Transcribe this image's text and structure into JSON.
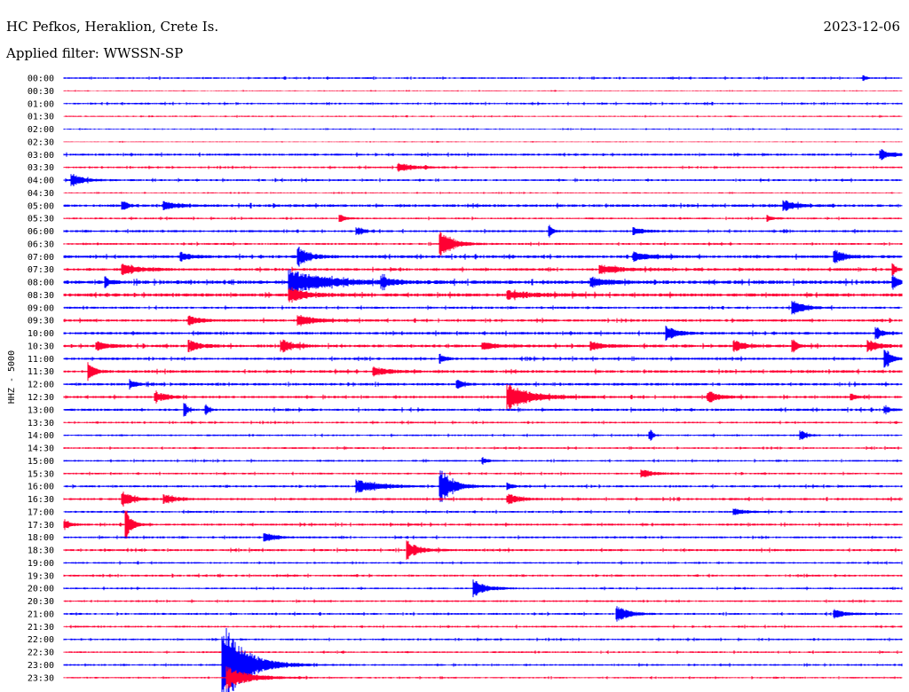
{
  "header": {
    "station": "HC Pefkos, Heraklion, Crete Is.",
    "date": "2023-12-06",
    "filter": "Applied filter: WWSSN-SP",
    "channel_label": "HHZ - 5000"
  },
  "colors": {
    "even_trace": "#0000ff",
    "odd_trace": "#ff0033",
    "background": "#ffffff",
    "text": "#000000"
  },
  "chart_data": {
    "type": "line",
    "title": "HC Pefkos, Heraklion, Crete Is.",
    "ylabel": "HHZ - 5000",
    "row_labels": [
      "00:00",
      "00:30",
      "01:00",
      "01:30",
      "02:00",
      "02:30",
      "03:00",
      "03:30",
      "04:00",
      "04:30",
      "05:00",
      "05:30",
      "06:00",
      "06:30",
      "07:00",
      "07:30",
      "08:00",
      "08:30",
      "09:00",
      "09:30",
      "10:00",
      "10:30",
      "11:00",
      "11:30",
      "12:00",
      "12:30",
      "13:00",
      "13:30",
      "14:00",
      "14:30",
      "15:00",
      "15:30",
      "16:00",
      "16:30",
      "17:00",
      "17:30",
      "18:00",
      "18:30",
      "19:00",
      "19:30",
      "20:00",
      "20:30",
      "21:00",
      "21:30",
      "22:00",
      "22:30",
      "23:00",
      "23:30"
    ],
    "row_minutes": 30,
    "noise_level": [
      0.8,
      0.4,
      0.8,
      0.6,
      0.5,
      0.4,
      1.0,
      0.8,
      0.9,
      0.5,
      1.2,
      0.8,
      1.0,
      0.9,
      1.3,
      1.2,
      1.6,
      1.5,
      1.0,
      1.1,
      1.2,
      1.3,
      1.1,
      1.2,
      1.2,
      1.1,
      1.1,
      0.8,
      0.8,
      0.8,
      0.8,
      0.8,
      1.0,
      1.0,
      0.9,
      1.0,
      0.9,
      1.0,
      0.8,
      0.9,
      0.8,
      0.8,
      0.9,
      0.8,
      0.8,
      0.8,
      0.8,
      0.7
    ],
    "events": [
      {
        "row": 0,
        "t": 0.955,
        "amp": 2,
        "dur": 0.005
      },
      {
        "row": 6,
        "t": 0.975,
        "amp": 5,
        "dur": 0.02
      },
      {
        "row": 7,
        "t": 0.4,
        "amp": 4,
        "dur": 0.03
      },
      {
        "row": 8,
        "t": 0.01,
        "amp": 6,
        "dur": 0.02
      },
      {
        "row": 10,
        "t": 0.07,
        "amp": 5,
        "dur": 0.01
      },
      {
        "row": 10,
        "t": 0.12,
        "amp": 4,
        "dur": 0.02
      },
      {
        "row": 10,
        "t": 0.86,
        "amp": 5,
        "dur": 0.02
      },
      {
        "row": 11,
        "t": 0.33,
        "amp": 3,
        "dur": 0.01
      },
      {
        "row": 11,
        "t": 0.84,
        "amp": 3,
        "dur": 0.01
      },
      {
        "row": 12,
        "t": 0.35,
        "amp": 4,
        "dur": 0.01
      },
      {
        "row": 12,
        "t": 0.58,
        "amp": 6,
        "dur": 0.005
      },
      {
        "row": 12,
        "t": 0.68,
        "amp": 3,
        "dur": 0.02
      },
      {
        "row": 13,
        "t": 0.45,
        "amp": 14,
        "dur": 0.02
      },
      {
        "row": 14,
        "t": 0.14,
        "amp": 4,
        "dur": 0.02
      },
      {
        "row": 14,
        "t": 0.28,
        "amp": 9,
        "dur": 0.02
      },
      {
        "row": 14,
        "t": 0.68,
        "amp": 4,
        "dur": 0.03
      },
      {
        "row": 14,
        "t": 0.92,
        "amp": 6,
        "dur": 0.02
      },
      {
        "row": 15,
        "t": 0.07,
        "amp": 5,
        "dur": 0.03
      },
      {
        "row": 15,
        "t": 0.64,
        "amp": 4,
        "dur": 0.04
      },
      {
        "row": 15,
        "t": 0.99,
        "amp": 6,
        "dur": 0.005
      },
      {
        "row": 16,
        "t": 0.05,
        "amp": 4,
        "dur": 0.01
      },
      {
        "row": 16,
        "t": 0.27,
        "amp": 12,
        "dur": 0.06
      },
      {
        "row": 16,
        "t": 0.38,
        "amp": 5,
        "dur": 0.02
      },
      {
        "row": 16,
        "t": 0.63,
        "amp": 4,
        "dur": 0.03
      },
      {
        "row": 16,
        "t": 0.99,
        "amp": 6,
        "dur": 0.01
      },
      {
        "row": 17,
        "t": 0.27,
        "amp": 6,
        "dur": 0.03
      },
      {
        "row": 17,
        "t": 0.53,
        "amp": 4,
        "dur": 0.04
      },
      {
        "row": 18,
        "t": 0.87,
        "amp": 7,
        "dur": 0.02
      },
      {
        "row": 19,
        "t": 0.15,
        "amp": 4,
        "dur": 0.02
      },
      {
        "row": 19,
        "t": 0.28,
        "amp": 5,
        "dur": 0.03
      },
      {
        "row": 20,
        "t": 0.72,
        "amp": 6,
        "dur": 0.02
      },
      {
        "row": 20,
        "t": 0.97,
        "amp": 6,
        "dur": 0.01
      },
      {
        "row": 21,
        "t": 0.04,
        "amp": 4,
        "dur": 0.02
      },
      {
        "row": 21,
        "t": 0.15,
        "amp": 5,
        "dur": 0.02
      },
      {
        "row": 21,
        "t": 0.26,
        "amp": 6,
        "dur": 0.02
      },
      {
        "row": 21,
        "t": 0.5,
        "amp": 4,
        "dur": 0.02
      },
      {
        "row": 21,
        "t": 0.63,
        "amp": 4,
        "dur": 0.02
      },
      {
        "row": 21,
        "t": 0.8,
        "amp": 5,
        "dur": 0.02
      },
      {
        "row": 21,
        "t": 0.87,
        "amp": 6,
        "dur": 0.01
      },
      {
        "row": 21,
        "t": 0.96,
        "amp": 5,
        "dur": 0.02
      },
      {
        "row": 22,
        "t": 0.45,
        "amp": 4,
        "dur": 0.01
      },
      {
        "row": 22,
        "t": 0.98,
        "amp": 12,
        "dur": 0.01
      },
      {
        "row": 23,
        "t": 0.03,
        "amp": 8,
        "dur": 0.01
      },
      {
        "row": 23,
        "t": 0.37,
        "amp": 4,
        "dur": 0.03
      },
      {
        "row": 24,
        "t": 0.08,
        "amp": 4,
        "dur": 0.01
      },
      {
        "row": 24,
        "t": 0.47,
        "amp": 4,
        "dur": 0.01
      },
      {
        "row": 25,
        "t": 0.11,
        "amp": 5,
        "dur": 0.02
      },
      {
        "row": 25,
        "t": 0.53,
        "amp": 12,
        "dur": 0.04
      },
      {
        "row": 25,
        "t": 0.77,
        "amp": 5,
        "dur": 0.02
      },
      {
        "row": 25,
        "t": 0.94,
        "amp": 3,
        "dur": 0.01
      },
      {
        "row": 26,
        "t": 0.145,
        "amp": 6,
        "dur": 0.005
      },
      {
        "row": 26,
        "t": 0.17,
        "amp": 5,
        "dur": 0.005
      },
      {
        "row": 26,
        "t": 0.98,
        "amp": 3,
        "dur": 0.01
      },
      {
        "row": 28,
        "t": 0.7,
        "amp": 5,
        "dur": 0.005
      },
      {
        "row": 28,
        "t": 0.88,
        "amp": 5,
        "dur": 0.01
      },
      {
        "row": 30,
        "t": 0.5,
        "amp": 3,
        "dur": 0.01
      },
      {
        "row": 31,
        "t": 0.69,
        "amp": 4,
        "dur": 0.02
      },
      {
        "row": 32,
        "t": 0.35,
        "amp": 6,
        "dur": 0.04
      },
      {
        "row": 32,
        "t": 0.45,
        "amp": 17,
        "dur": 0.02
      },
      {
        "row": 32,
        "t": 0.53,
        "amp": 3,
        "dur": 0.01
      },
      {
        "row": 33,
        "t": 0.07,
        "amp": 7,
        "dur": 0.02
      },
      {
        "row": 33,
        "t": 0.12,
        "amp": 4,
        "dur": 0.02
      },
      {
        "row": 33,
        "t": 0.53,
        "amp": 5,
        "dur": 0.02
      },
      {
        "row": 34,
        "t": 0.8,
        "amp": 3,
        "dur": 0.02
      },
      {
        "row": 35,
        "t": 0.0,
        "amp": 5,
        "dur": 0.01
      },
      {
        "row": 35,
        "t": 0.075,
        "amp": 13,
        "dur": 0.01
      },
      {
        "row": 36,
        "t": 0.24,
        "amp": 4,
        "dur": 0.02
      },
      {
        "row": 37,
        "t": 0.41,
        "amp": 9,
        "dur": 0.02
      },
      {
        "row": 40,
        "t": 0.49,
        "amp": 8,
        "dur": 0.02
      },
      {
        "row": 42,
        "t": 0.66,
        "amp": 8,
        "dur": 0.02
      },
      {
        "row": 42,
        "t": 0.92,
        "amp": 4,
        "dur": 0.02
      },
      {
        "row": 46,
        "t": 0.19,
        "amp": 40,
        "dur": 0.04
      },
      {
        "row": 47,
        "t": 0.195,
        "amp": 10,
        "dur": 0.04
      }
    ]
  }
}
